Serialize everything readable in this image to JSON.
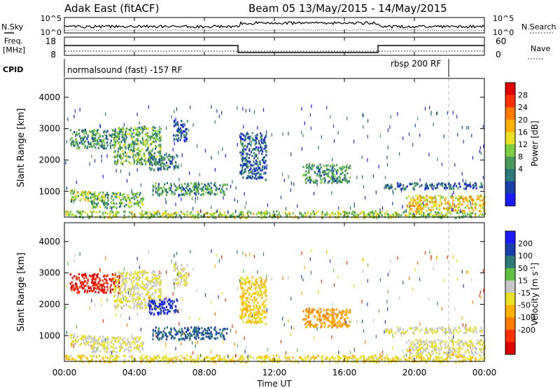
{
  "header": {
    "station": "Adak East (fitACF)",
    "beam_info": "Beam 05 13/May/2015 - 14/May/2015"
  },
  "panels": {
    "nsky": {
      "left_label": "N.Sky",
      "right_label": "N.Search",
      "ticks_left": [
        "10^5",
        "10^0"
      ],
      "ticks_right": [
        "10^5",
        "10^0"
      ],
      "y_scale": "log"
    },
    "freq": {
      "left_label_line1": "Freq.",
      "left_label_line2": "[MHz]",
      "right_label": "Nave",
      "ticks_left": [
        "18",
        "8"
      ],
      "ticks_right": [
        "60",
        "0"
      ]
    },
    "cpid": {
      "label": "CPID",
      "segments": [
        {
          "text": "normalsound (fast) -157 RF",
          "start_hour": 0,
          "end_hour": 21.8
        },
        {
          "text": "rbsp 200 RF",
          "start_hour": 21.8,
          "end_hour": 24
        }
      ]
    }
  },
  "axes": {
    "ylabel": "Slant Range [km]",
    "xlabel": "Time UT",
    "y_ticks": [
      "1000",
      "2000",
      "3000",
      "4000"
    ],
    "x_ticks": [
      "00:00",
      "04:00",
      "08:00",
      "12:00",
      "16:00",
      "20:00",
      "00:00"
    ]
  },
  "colorbars": {
    "power": {
      "label": "Power [dB]",
      "ticks": [
        "4",
        "8",
        "12",
        "16",
        "20",
        "24",
        "28"
      ],
      "colors": [
        "#1a1aff",
        "#1a3fa8",
        "#2e7a7a",
        "#4a9a5a",
        "#7fcf3f",
        "#e8e020",
        "#ffb000",
        "#ff7a00",
        "#ff3000",
        "#e00000"
      ]
    },
    "velocity": {
      "label": "Velocity [m s^-1]",
      "ticks": [
        "200",
        "100",
        "50",
        "15",
        "-15",
        "-50",
        "-100",
        "-200"
      ],
      "colors": [
        "#1a1aff",
        "#1a3fa8",
        "#2e7a7a",
        "#60c040",
        "#c8c8c8",
        "#e8e020",
        "#ffb000",
        "#ff7a00",
        "#ff3000",
        "#e00000"
      ]
    }
  },
  "chart_data": {
    "type": "heatmap",
    "title": "Adak East (fitACF) Beam 05 13/May/2015 - 14/May/2015",
    "xlabel": "Time UT",
    "ylabel": "Slant Range [km]",
    "xlim_hours": [
      0,
      24
    ],
    "ylim_km": [
      180,
      4600
    ],
    "power_range_db": [
      0,
      30
    ],
    "velocity_range_ms": [
      -250,
      250
    ],
    "regions": [
      {
        "hour_start": 0.3,
        "hour_end": 3.2,
        "range_start_km": 2400,
        "range_end_km": 3000,
        "power_db": 10,
        "velocity_ms": -200
      },
      {
        "hour_start": 2.8,
        "hour_end": 5.5,
        "range_start_km": 1900,
        "range_end_km": 3100,
        "power_db": 12,
        "velocity_ms": 0
      },
      {
        "hour_start": 4.8,
        "hour_end": 6.5,
        "range_start_km": 1700,
        "range_end_km": 2200,
        "power_db": 8,
        "velocity_ms": 200
      },
      {
        "hour_start": 6.2,
        "hour_end": 7.0,
        "range_start_km": 2600,
        "range_end_km": 3300,
        "power_db": 6,
        "velocity_ms": 0
      },
      {
        "hour_start": 0.3,
        "hour_end": 1.5,
        "range_start_km": 700,
        "range_end_km": 1100,
        "power_db": 14,
        "velocity_ms": 0
      },
      {
        "hour_start": 1.5,
        "hour_end": 4.5,
        "range_start_km": 500,
        "range_end_km": 1000,
        "power_db": 12,
        "velocity_ms": 0
      },
      {
        "hour_start": 5.0,
        "hour_end": 9.3,
        "range_start_km": 900,
        "range_end_km": 1300,
        "power_db": 10,
        "velocity_ms": 150
      },
      {
        "hour_start": 10.0,
        "hour_end": 11.5,
        "range_start_km": 1400,
        "range_end_km": 2900,
        "power_db": 6,
        "velocity_ms": -50
      },
      {
        "hour_start": 13.6,
        "hour_end": 16.3,
        "range_start_km": 1300,
        "range_end_km": 1900,
        "power_db": 10,
        "velocity_ms": -100
      },
      {
        "hour_start": 18.3,
        "hour_end": 24.0,
        "range_start_km": 1100,
        "range_end_km": 1300,
        "power_db": 6,
        "velocity_ms": 0
      },
      {
        "hour_start": 19.5,
        "hour_end": 24.0,
        "range_start_km": 400,
        "range_end_km": 900,
        "power_db": 18,
        "velocity_ms": 0
      },
      {
        "hour_start": 0.0,
        "hour_end": 24.0,
        "range_start_km": 180,
        "range_end_km": 400,
        "power_db": 14,
        "velocity_ms": -30
      }
    ]
  }
}
